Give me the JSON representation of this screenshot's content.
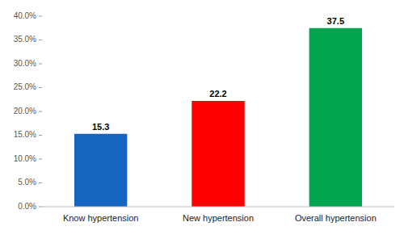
{
  "chart_data": {
    "type": "bar",
    "categories": [
      "Know hypertension",
      "New hypertension",
      "Overall hypertension"
    ],
    "values": [
      15.3,
      22.2,
      37.5
    ],
    "colors": [
      "#1565C0",
      "#FF0000",
      "#00A550"
    ],
    "ylim": [
      0,
      40
    ],
    "yticks": [
      {
        "value": 0,
        "label": "0.0%"
      },
      {
        "value": 5,
        "label": "5.0%"
      },
      {
        "value": 10,
        "label": "10.0%"
      },
      {
        "value": 15,
        "label": "15.0%"
      },
      {
        "value": 20,
        "label": "20.0%"
      },
      {
        "value": 25,
        "label": "25.0%"
      },
      {
        "value": 30,
        "label": "30.0%"
      },
      {
        "value": 35,
        "label": "35.0%"
      },
      {
        "value": 40,
        "label": "40.0%"
      }
    ],
    "data_labels": true,
    "grid": false
  }
}
